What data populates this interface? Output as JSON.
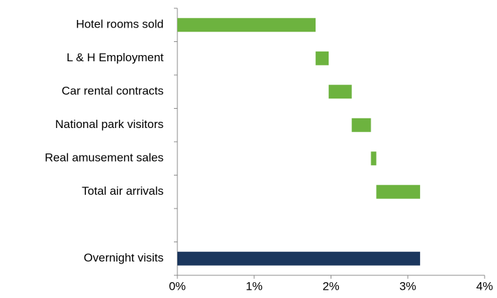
{
  "chart_data": {
    "type": "waterfall",
    "orientation": "horizontal",
    "categories": [
      "Hotel rooms sold",
      "L & H Employment",
      "Car rental contracts",
      "National park visitors",
      "Real amusement sales",
      "Total air arrivals",
      null,
      "Overnight visits"
    ],
    "values": [
      1.8,
      0.17,
      0.3,
      0.25,
      0.07,
      0.57,
      null,
      3.16
    ],
    "totals": [
      false,
      false,
      false,
      false,
      false,
      false,
      null,
      true
    ],
    "colors": [
      "#6db33f",
      "#6db33f",
      "#6db33f",
      "#6db33f",
      "#6db33f",
      "#6db33f",
      null,
      "#1b365d"
    ],
    "xlim": [
      0,
      4
    ],
    "xticks": [
      {
        "value": 0,
        "label": "0%"
      },
      {
        "value": 1,
        "label": "1%"
      },
      {
        "value": 2,
        "label": "2%"
      },
      {
        "value": 3,
        "label": "3%"
      },
      {
        "value": 4,
        "label": "4%"
      }
    ],
    "grid": false
  }
}
